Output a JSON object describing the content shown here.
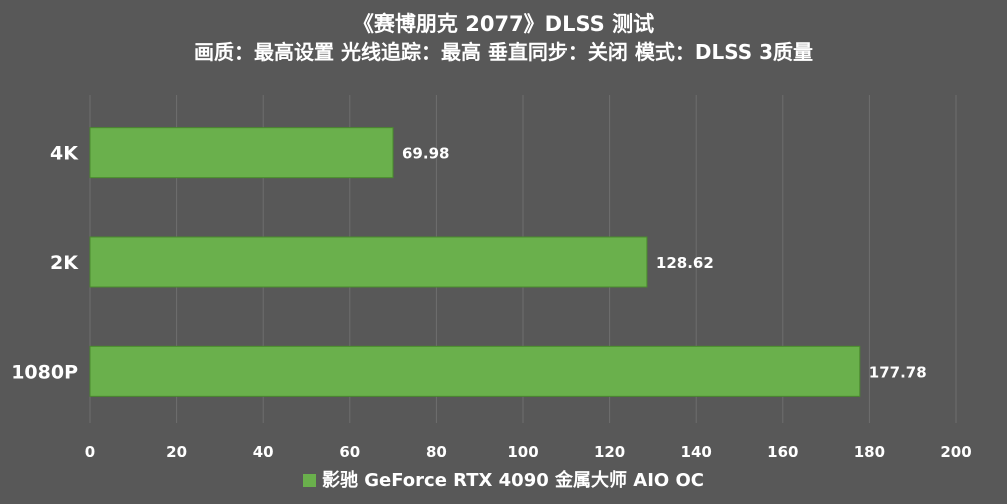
{
  "chart_data": {
    "type": "bar",
    "orientation": "horizontal",
    "title": "《赛博朋克 2077》DLSS 测试",
    "subtitle": "画质：最高设置 光线追踪：最高  垂直同步：关闭 模式：DLSS 3质量",
    "categories": [
      "4K",
      "2K",
      "1080P"
    ],
    "series": [
      {
        "name": "影驰 GeForce RTX 4090 金属大师 AIO OC",
        "values": [
          69.98,
          128.62,
          177.78
        ],
        "color": "#6ab04c"
      }
    ],
    "data_labels": [
      "69.98",
      "128.62",
      "177.78"
    ],
    "xlim": [
      0,
      200
    ],
    "x_ticks": [
      "0",
      "20",
      "40",
      "60",
      "80",
      "100",
      "120",
      "140",
      "160",
      "180",
      "200"
    ],
    "grid": true,
    "legend_position": "bottom",
    "colors": {
      "background": "#585858",
      "gridline": "#6e6e6e",
      "bar": "#6ab04c",
      "bar_border": "#4a8a2e",
      "text": "#ffffff"
    }
  }
}
